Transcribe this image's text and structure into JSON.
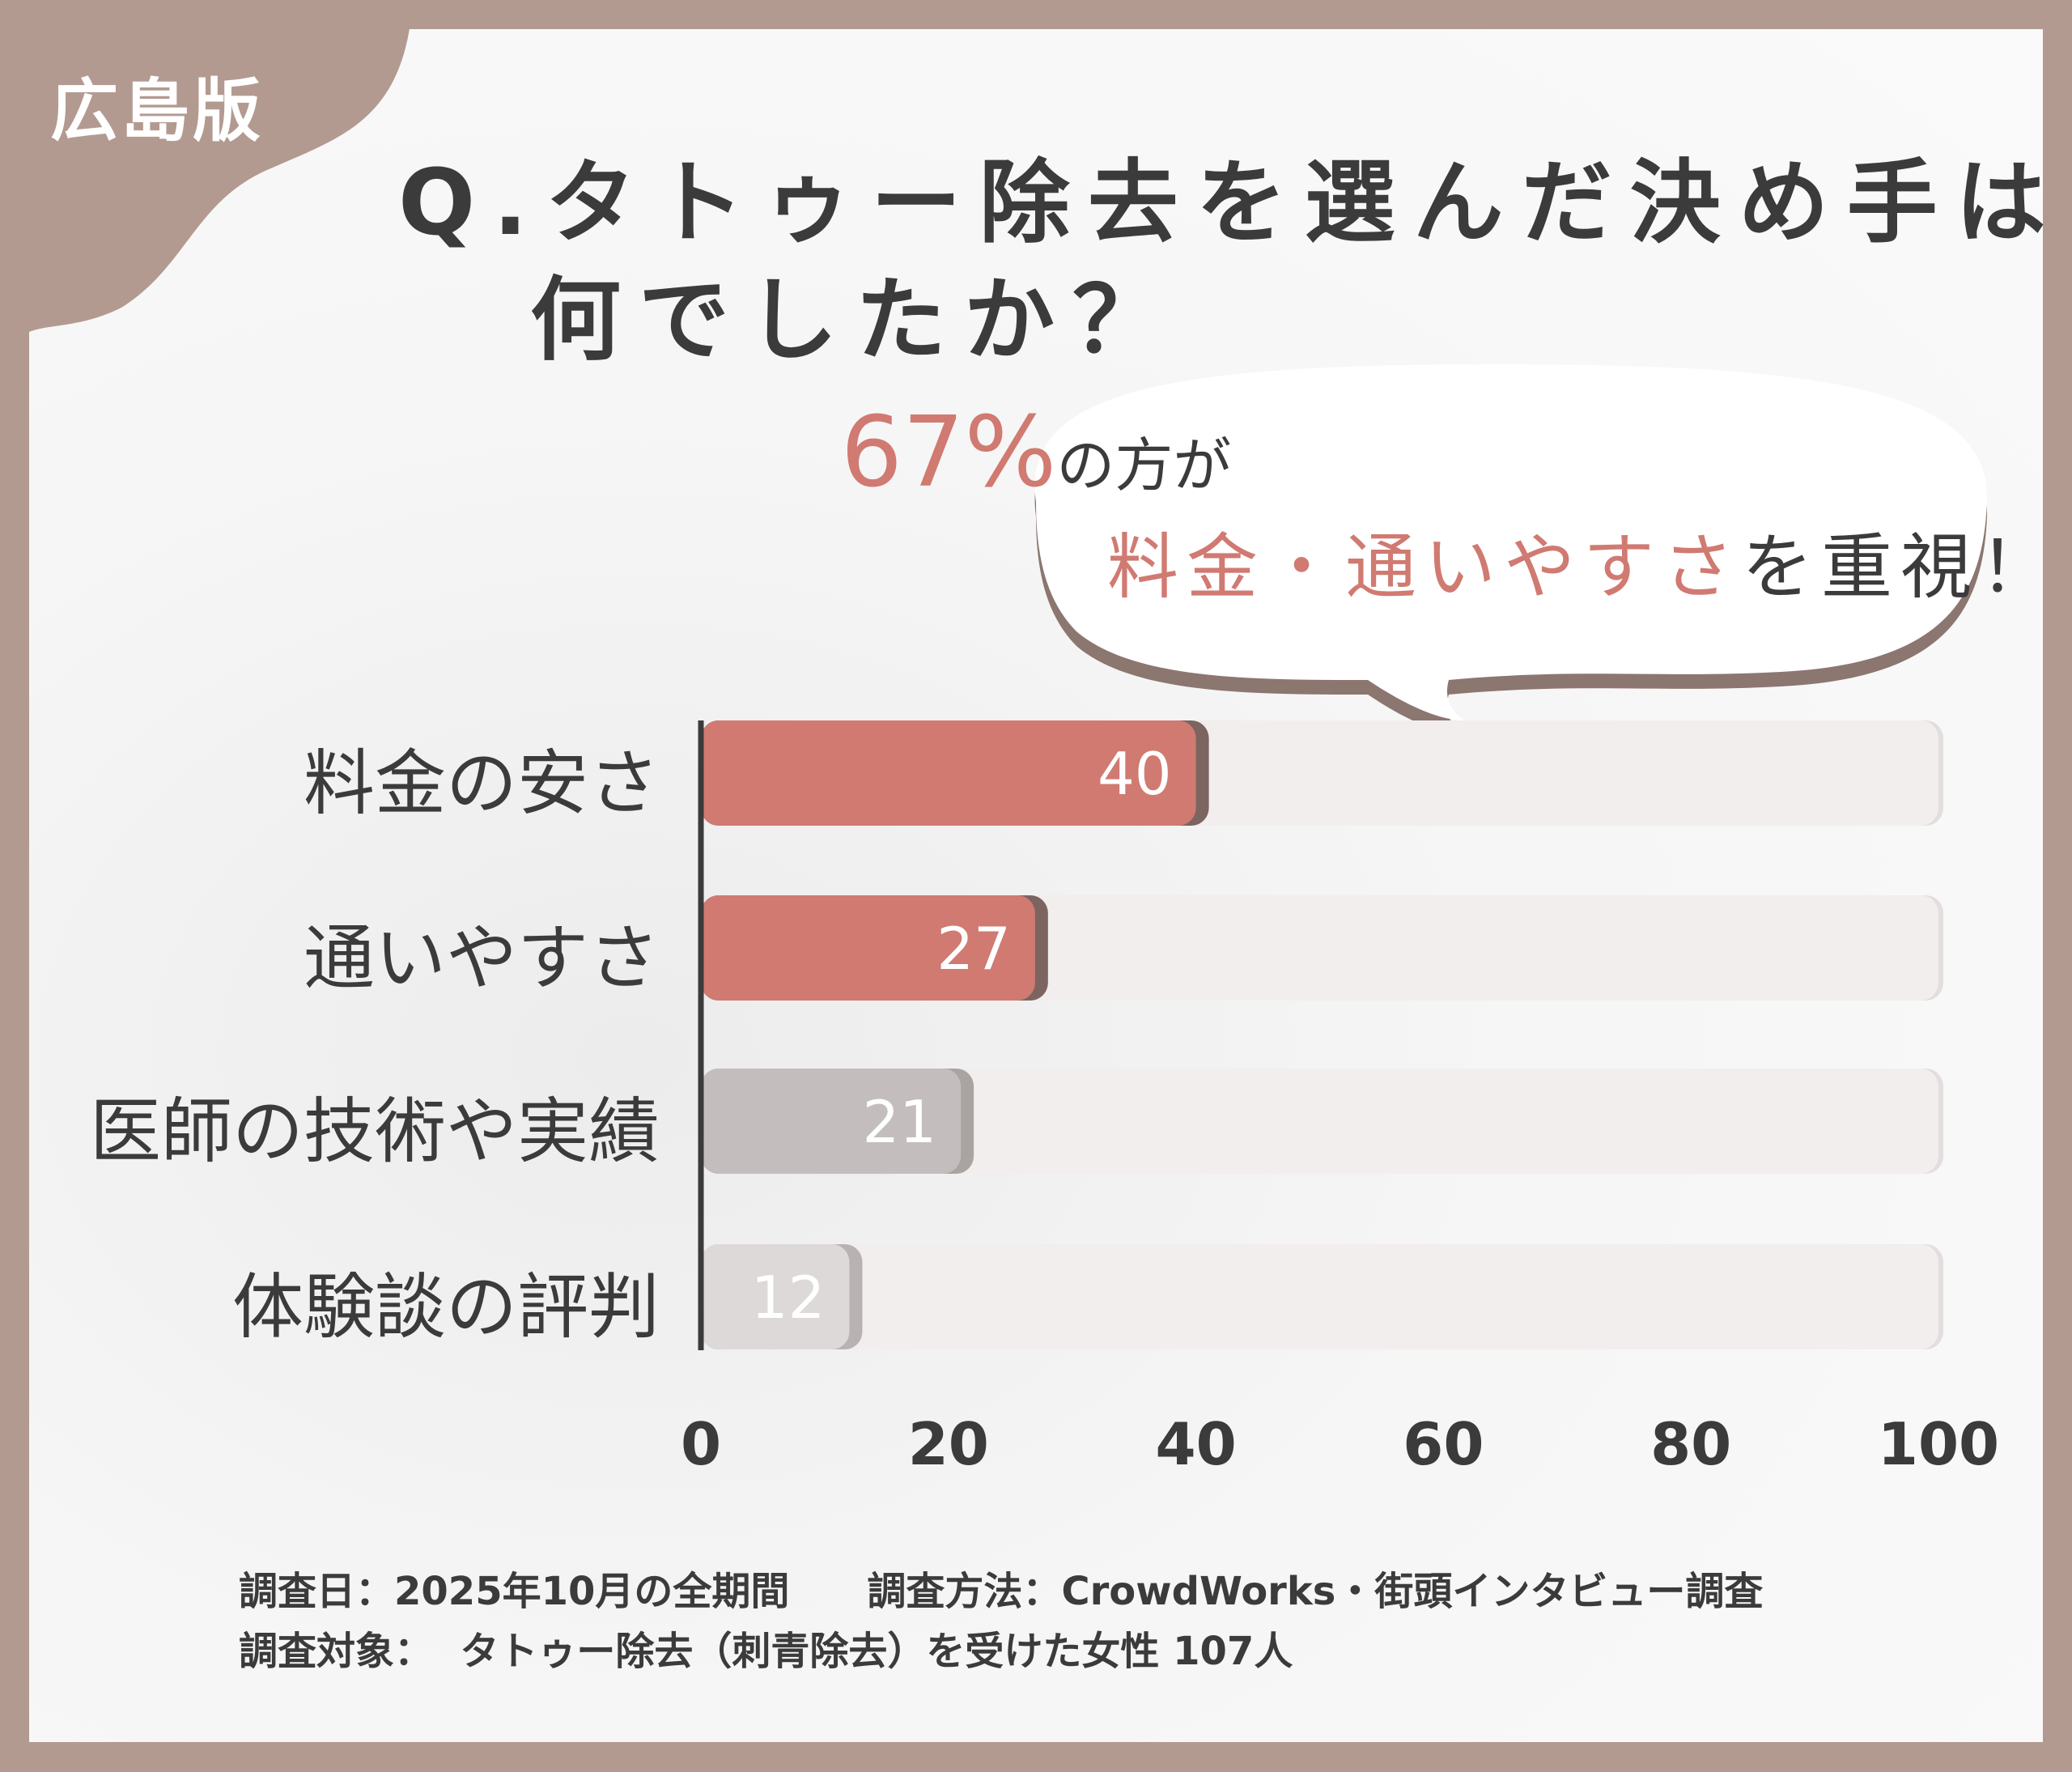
{
  "badge": "広島版",
  "title": {
    "line1": "Q.タトゥー除去を選んだ決め手は",
    "line2": "何でしたか？"
  },
  "callout": {
    "percent": "67%",
    "line1_rest": "の方が",
    "line2_highlight": "料金・通いやすさ",
    "line2_rest": "を重視！"
  },
  "colors": {
    "frame": "#b39a90",
    "accent": "#d07a72",
    "accent_shadow": "#7c6460",
    "gray_bar": "#c3bebd",
    "light_bar": "#dcd9d8",
    "track": "#f1eeed",
    "text": "#3b3b3b"
  },
  "chart_data": {
    "type": "bar",
    "orientation": "horizontal",
    "categories": [
      "料金の安さ",
      "通いやすさ",
      "医師の技術や実績",
      "体験談の評判"
    ],
    "values": [
      40,
      27,
      21,
      12
    ],
    "xlim": [
      0,
      100
    ],
    "xticks": [
      "0",
      "20",
      "40",
      "60",
      "80",
      "100"
    ],
    "data_labels": [
      "40",
      "27",
      "21",
      "12"
    ],
    "grid": false
  },
  "footer": {
    "line1": "調査日：2025年10月の全期間　　調査方法：CrowdWorks・街頭インタビュー調査",
    "line2": "調査対象：  タトゥー除去（刺青除去）を受けた女性 107人"
  }
}
